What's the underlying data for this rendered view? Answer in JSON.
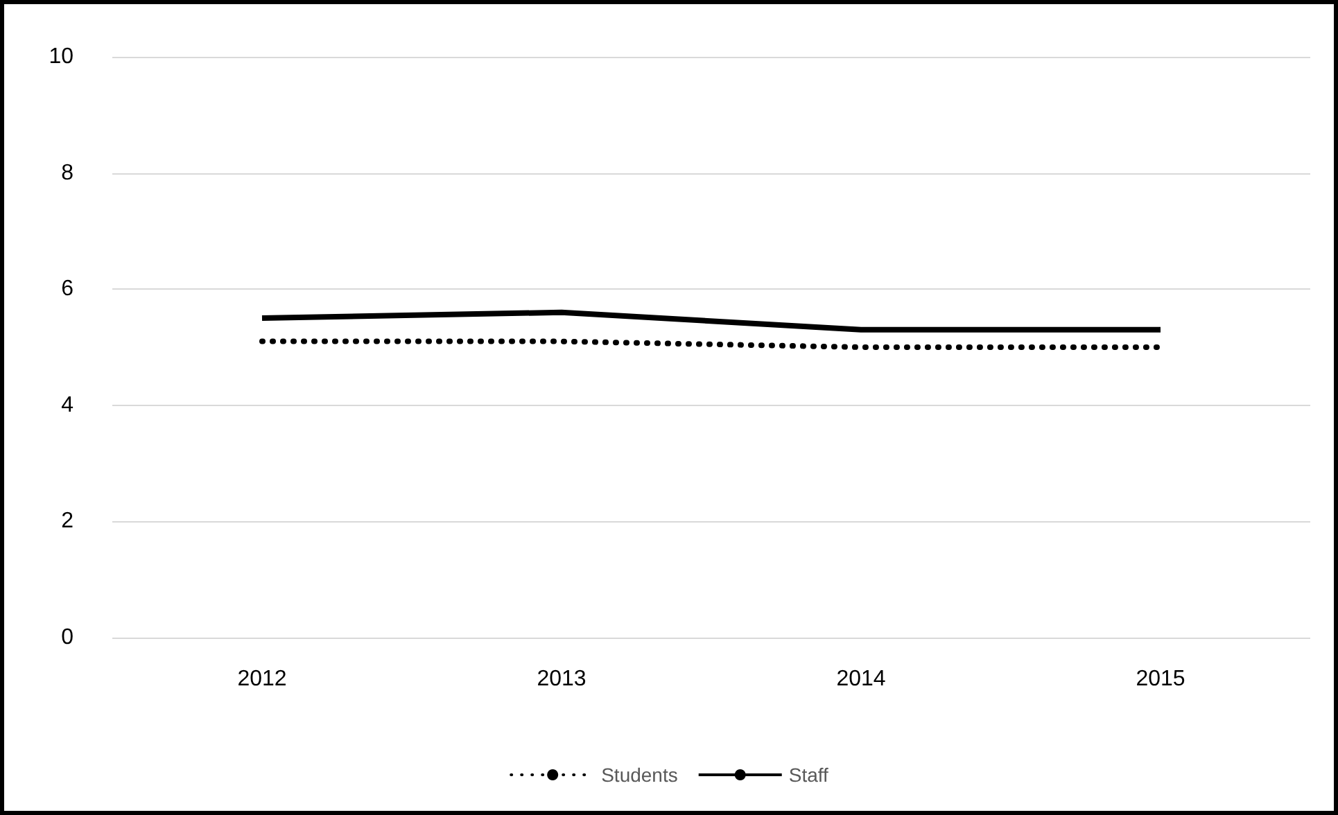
{
  "chart_data": {
    "type": "line",
    "categories": [
      "2012",
      "2013",
      "2014",
      "2015"
    ],
    "series": [
      {
        "name": "Students",
        "color": "#000000",
        "line_style": "dotted",
        "values": [
          5.1,
          5.1,
          5.0,
          5.0
        ]
      },
      {
        "name": "Staff",
        "color": "#000000",
        "line_style": "solid",
        "values": [
          5.5,
          5.6,
          5.3,
          5.3
        ]
      }
    ],
    "ylim": [
      0,
      10
    ],
    "yticks": [
      0,
      2,
      4,
      6,
      8,
      10
    ],
    "grid": "y",
    "legend": "bottom",
    "marker": "none"
  }
}
